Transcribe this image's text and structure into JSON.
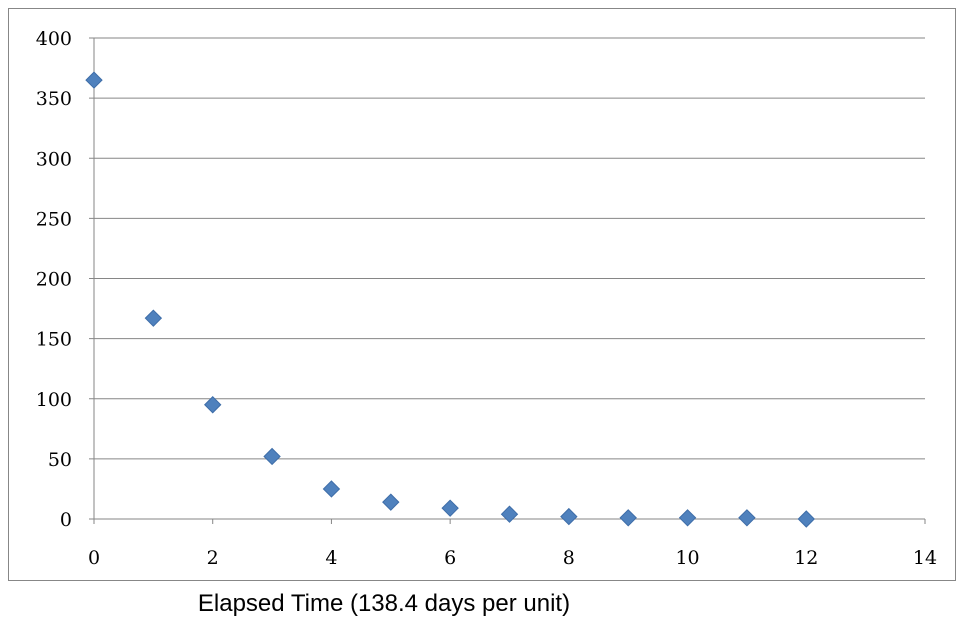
{
  "chart_data": {
    "type": "scatter",
    "title": "",
    "xlabel": "Elapsed Time (138.4 days per unit)",
    "ylabel": "",
    "xlim": [
      0,
      14
    ],
    "ylim": [
      0,
      400
    ],
    "xticks": [
      0,
      2,
      4,
      6,
      8,
      10,
      12,
      14
    ],
    "yticks": [
      0,
      50,
      100,
      150,
      200,
      250,
      300,
      350,
      400
    ],
    "grid": "horizontal",
    "legend": "none",
    "marker": "diamond",
    "marker_color": "#4F81BD",
    "series": [
      {
        "x": [
          0,
          1,
          2,
          3,
          4,
          5,
          6,
          7,
          8,
          9,
          10,
          11,
          12
        ],
        "y": [
          365,
          167,
          95,
          52,
          25,
          14,
          9,
          4,
          2,
          1,
          1,
          1,
          0
        ]
      }
    ]
  }
}
